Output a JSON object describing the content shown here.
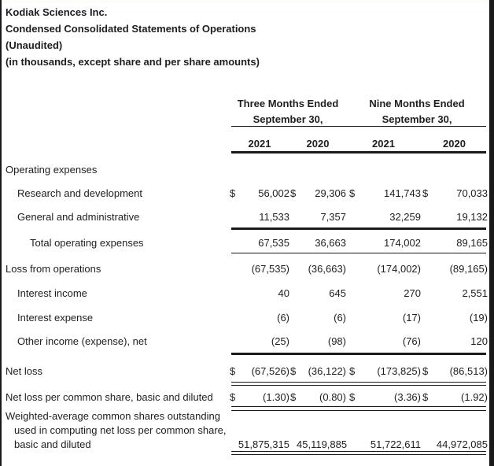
{
  "title": {
    "line1": "Kodiak Sciences Inc.",
    "line2": "Condensed Consolidated Statements of Operations",
    "line3": "(Unaudited)",
    "line4": "(in thousands, except share and per share amounts)"
  },
  "header": {
    "group1_line1": "Three Months Ended",
    "group1_line2": "September 30,",
    "group2_line1": "Nine Months Ended",
    "group2_line2": "September 30,",
    "years": [
      "2021",
      "2020",
      "2021",
      "2020"
    ]
  },
  "currency_symbol": "$",
  "colors": {
    "text": "#1e1e1e",
    "rule": "#1a1a1a",
    "edge_strip": "#191919",
    "background": "#ffffff"
  },
  "table": {
    "rows": [
      {
        "label": "Operating expenses",
        "indent": 0,
        "dollars": false,
        "values": [
          "",
          "",
          "",
          ""
        ],
        "rule_below": null
      },
      {
        "label": "Research and development",
        "indent": 1,
        "dollars": true,
        "values": [
          "56,002",
          "29,306",
          "141,743",
          "70,033"
        ],
        "rule_below": null
      },
      {
        "label": "General and administrative",
        "indent": 1,
        "dollars": false,
        "values": [
          "11,533",
          "7,357",
          "32,259",
          "19,132"
        ],
        "rule_below": "thick"
      },
      {
        "label": "Total operating expenses",
        "indent": 2,
        "dollars": false,
        "values": [
          "67,535",
          "36,663",
          "174,002",
          "89,165"
        ],
        "rule_below": "thin"
      },
      {
        "label": "Loss from operations",
        "indent": 0,
        "dollars": false,
        "values": [
          "(67,535)",
          "(36,663)",
          "(174,002)",
          "(89,165)"
        ],
        "rule_below": null
      },
      {
        "label": "Interest income",
        "indent": 1,
        "dollars": false,
        "values": [
          "40",
          "645",
          "270",
          "2,551"
        ],
        "rule_below": null
      },
      {
        "label": "Interest expense",
        "indent": 1,
        "dollars": false,
        "values": [
          "(6)",
          "(6)",
          "(17)",
          "(19)"
        ],
        "rule_below": null
      },
      {
        "label": "Other income (expense), net",
        "indent": 1,
        "dollars": false,
        "values": [
          "(25)",
          "(98)",
          "(76)",
          "120"
        ],
        "rule_below": "thick"
      },
      {
        "label": "Net loss",
        "indent": 0,
        "dollars": true,
        "values": [
          "(67,526)",
          "(36,122)",
          "(173,825)",
          "(86,513)"
        ],
        "rule_below": "double"
      },
      {
        "label": "Net loss per common share, basic and diluted",
        "indent": 0,
        "dollars": true,
        "values": [
          "(1.30)",
          "(0.80)",
          "(3.36)",
          "(1.92)"
        ],
        "rule_below": "double"
      }
    ],
    "weighted_row": {
      "label_lines": [
        "Weighted-average common shares outstanding",
        "used in computing net loss per common share,",
        "basic and diluted"
      ],
      "dollars": false,
      "values": [
        "51,875,315",
        "45,119,885",
        "51,722,611",
        "44,972,085"
      ],
      "rule_below": "double"
    }
  }
}
